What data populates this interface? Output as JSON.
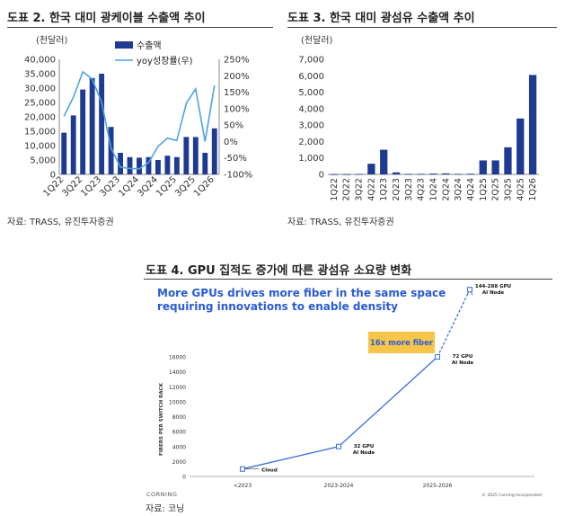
{
  "panel2": {
    "title": "도표 2. 한국 대미 광케이블 수출액 추이",
    "unit": "(천달러)",
    "source": "자료: TRASS, 유진투자증권"
  },
  "panel3": {
    "title": "도표 3. 한국 대미 광섬유 수출액 추이",
    "unit": "(천달러)",
    "source": "자료: TRASS, 유진투자증권"
  },
  "panel4": {
    "title": "도표 4. GPU 집적도 증가에 따른 광섬유 소요량 변화",
    "source": "자료: 코닝",
    "headline_1": "More GPUs drives more fiber in the same space",
    "headline_2": "requiring innovations to enable density",
    "callout": "16x more fiber",
    "logo": "CORNING",
    "copyright": "© 2025 Corning Incorporated"
  },
  "chart_data": [
    {
      "type": "bar",
      "title": "도표 2. 한국 대미 광케이블 수출액 추이",
      "ylabel": "(천달러)",
      "categories": [
        "1Q22",
        "2Q22",
        "3Q22",
        "4Q22",
        "1Q23",
        "2Q23",
        "3Q23",
        "4Q23",
        "1Q24",
        "2Q24",
        "3Q24",
        "4Q24",
        "1Q25",
        "2Q25",
        "3Q25",
        "4Q25",
        "1Q26"
      ],
      "x_tick_labels": [
        "1Q22",
        "3Q22",
        "1Q23",
        "3Q23",
        "1Q24",
        "3Q24",
        "1Q25",
        "3Q25",
        "1Q26"
      ],
      "ylim": [
        0,
        40000
      ],
      "yticks": [
        "0",
        "5,000",
        "10,000",
        "15,000",
        "20,000",
        "25,000",
        "30,000",
        "35,000",
        "40,000"
      ],
      "y2lim": [
        -100,
        250
      ],
      "y2ticks": [
        "-100%",
        "-50%",
        "0%",
        "50%",
        "100%",
        "150%",
        "200%",
        "250%"
      ],
      "legend_position": "top-right",
      "series": [
        {
          "name": "수출액",
          "kind": "bar",
          "color": "#1f3a93",
          "values": [
            14500,
            20500,
            29500,
            33500,
            35000,
            16500,
            7500,
            6000,
            5800,
            6000,
            5000,
            6500,
            6000,
            13000,
            13000,
            7500,
            16000
          ]
        },
        {
          "name": "yoy성장률(우)",
          "kind": "line",
          "axis": "right",
          "color": "#4da3e0",
          "values": [
            77,
            135,
            212,
            190,
            120,
            -20,
            -78,
            -82,
            -83,
            -64,
            -15,
            10,
            3,
            116,
            160,
            0,
            170
          ]
        }
      ]
    },
    {
      "type": "bar",
      "title": "도표 3. 한국 대미 광섬유 수출액 추이",
      "ylabel": "(천달러)",
      "categories": [
        "1Q22",
        "2Q22",
        "3Q22",
        "4Q22",
        "1Q23",
        "2Q23",
        "3Q23",
        "4Q23",
        "1Q24",
        "2Q24",
        "3Q24",
        "4Q24",
        "1Q25",
        "2Q25",
        "3Q25",
        "4Q25",
        "1Q26"
      ],
      "ylim": [
        0,
        7000
      ],
      "yticks": [
        "0",
        "1,000",
        "2,000",
        "3,000",
        "4,000",
        "5,000",
        "6,000",
        "7,000"
      ],
      "series": [
        {
          "name": "수출액",
          "color": "#1f3a93",
          "values": [
            10,
            10,
            20,
            650,
            1500,
            120,
            30,
            30,
            50,
            60,
            30,
            40,
            850,
            850,
            1650,
            3400,
            6050
          ]
        }
      ]
    },
    {
      "type": "line",
      "title": "More GPUs drives more fiber in the same space requiring innovations to enable density",
      "ylabel": "FIBERS PER SWITCH RACK",
      "categories": [
        "<2023",
        "2023-2024",
        "2025-2026",
        ""
      ],
      "ylim": [
        0,
        16000
      ],
      "yticks": [
        "0",
        "2000",
        "4000",
        "6000",
        "8000",
        "10000",
        "12000",
        "14000",
        "16000"
      ],
      "series": [
        {
          "name": "",
          "color": "#3a6fd8",
          "values": [
            1000,
            4000,
            16000,
            25000
          ],
          "point_labels": [
            "Cloud",
            "32 GPU\nAI Node",
            "72 GPU\nAI Node",
            "144-288 GPU\nAI Node"
          ]
        }
      ]
    }
  ]
}
